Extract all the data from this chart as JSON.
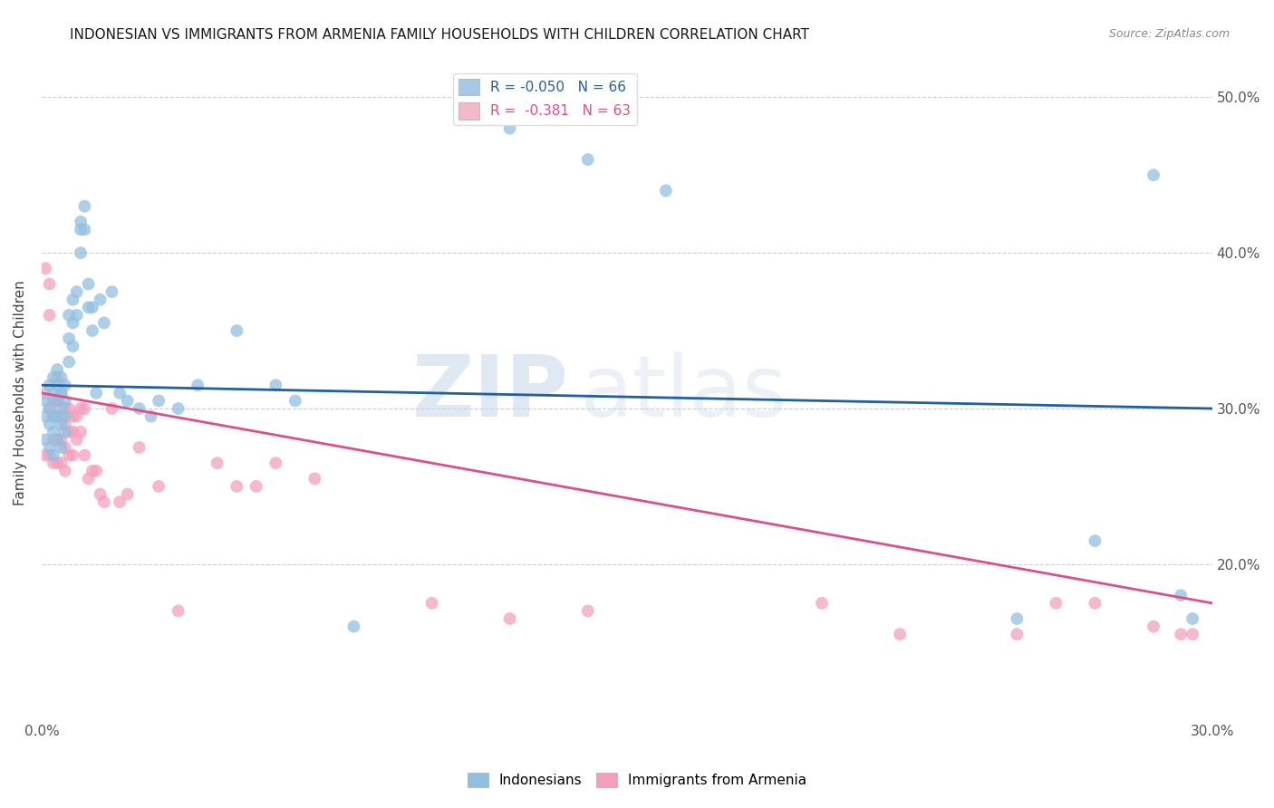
{
  "title": "INDONESIAN VS IMMIGRANTS FROM ARMENIA FAMILY HOUSEHOLDS WITH CHILDREN CORRELATION CHART",
  "source": "Source: ZipAtlas.com",
  "ylabel": "Family Households with Children",
  "x_min": 0.0,
  "x_max": 0.3,
  "y_min": 0.1,
  "y_max": 0.52,
  "x_ticks": [
    0.0,
    0.05,
    0.1,
    0.15,
    0.2,
    0.25,
    0.3
  ],
  "x_tick_labels": [
    "0.0%",
    "",
    "",
    "",
    "",
    "",
    "30.0%"
  ],
  "y_ticks": [
    0.2,
    0.3,
    0.4,
    0.5
  ],
  "y_tick_labels": [
    "20.0%",
    "30.0%",
    "40.0%",
    "50.0%"
  ],
  "legend_entries": [
    {
      "label": "R = -0.050   N = 66",
      "color": "#a8c8e8"
    },
    {
      "label": "R =  -0.381   N = 63",
      "color": "#f4b8cc"
    }
  ],
  "indonesian_R": -0.05,
  "armenian_R": -0.381,
  "blue_color": "#92bfe0",
  "pink_color": "#f4a0bc",
  "trend_blue": "#2060a0",
  "trend_pink": "#d85090",
  "watermark_zip": "ZIP",
  "watermark_atlas": "atlas",
  "legend_label1": "Indonesians",
  "legend_label2": "Immigrants from Armenia",
  "blue_trend_y0": 0.315,
  "blue_trend_y1": 0.3,
  "pink_trend_y0": 0.31,
  "pink_trend_y1": 0.175,
  "indonesian_x": [
    0.001,
    0.001,
    0.001,
    0.002,
    0.002,
    0.002,
    0.002,
    0.003,
    0.003,
    0.003,
    0.003,
    0.003,
    0.004,
    0.004,
    0.004,
    0.004,
    0.004,
    0.005,
    0.005,
    0.005,
    0.005,
    0.005,
    0.006,
    0.006,
    0.006,
    0.006,
    0.007,
    0.007,
    0.007,
    0.008,
    0.008,
    0.008,
    0.009,
    0.009,
    0.01,
    0.01,
    0.01,
    0.011,
    0.011,
    0.012,
    0.012,
    0.013,
    0.013,
    0.014,
    0.015,
    0.016,
    0.018,
    0.02,
    0.022,
    0.025,
    0.028,
    0.03,
    0.035,
    0.04,
    0.05,
    0.06,
    0.065,
    0.08,
    0.12,
    0.14,
    0.16,
    0.25,
    0.27,
    0.285,
    0.292,
    0.295
  ],
  "indonesian_y": [
    0.305,
    0.295,
    0.28,
    0.315,
    0.3,
    0.29,
    0.275,
    0.32,
    0.31,
    0.295,
    0.285,
    0.27,
    0.325,
    0.315,
    0.305,
    0.295,
    0.28,
    0.32,
    0.31,
    0.3,
    0.29,
    0.275,
    0.315,
    0.305,
    0.295,
    0.285,
    0.36,
    0.345,
    0.33,
    0.37,
    0.355,
    0.34,
    0.375,
    0.36,
    0.42,
    0.415,
    0.4,
    0.43,
    0.415,
    0.38,
    0.365,
    0.365,
    0.35,
    0.31,
    0.37,
    0.355,
    0.375,
    0.31,
    0.305,
    0.3,
    0.295,
    0.305,
    0.3,
    0.315,
    0.35,
    0.315,
    0.305,
    0.16,
    0.48,
    0.46,
    0.44,
    0.165,
    0.215,
    0.45,
    0.18,
    0.165
  ],
  "armenian_x": [
    0.001,
    0.001,
    0.001,
    0.002,
    0.002,
    0.002,
    0.002,
    0.003,
    0.003,
    0.003,
    0.003,
    0.004,
    0.004,
    0.004,
    0.004,
    0.004,
    0.005,
    0.005,
    0.005,
    0.005,
    0.006,
    0.006,
    0.006,
    0.006,
    0.007,
    0.007,
    0.007,
    0.008,
    0.008,
    0.008,
    0.009,
    0.009,
    0.01,
    0.01,
    0.011,
    0.011,
    0.012,
    0.013,
    0.014,
    0.015,
    0.016,
    0.018,
    0.02,
    0.022,
    0.025,
    0.03,
    0.035,
    0.045,
    0.05,
    0.055,
    0.06,
    0.07,
    0.1,
    0.12,
    0.14,
    0.2,
    0.22,
    0.25,
    0.26,
    0.27,
    0.285,
    0.292,
    0.295
  ],
  "armenian_y": [
    0.39,
    0.31,
    0.27,
    0.38,
    0.36,
    0.3,
    0.27,
    0.305,
    0.295,
    0.28,
    0.265,
    0.32,
    0.305,
    0.295,
    0.28,
    0.265,
    0.31,
    0.295,
    0.28,
    0.265,
    0.3,
    0.29,
    0.275,
    0.26,
    0.3,
    0.285,
    0.27,
    0.295,
    0.285,
    0.27,
    0.295,
    0.28,
    0.3,
    0.285,
    0.3,
    0.27,
    0.255,
    0.26,
    0.26,
    0.245,
    0.24,
    0.3,
    0.24,
    0.245,
    0.275,
    0.25,
    0.17,
    0.265,
    0.25,
    0.25,
    0.265,
    0.255,
    0.175,
    0.165,
    0.17,
    0.175,
    0.155,
    0.155,
    0.175,
    0.175,
    0.16,
    0.155,
    0.155
  ]
}
